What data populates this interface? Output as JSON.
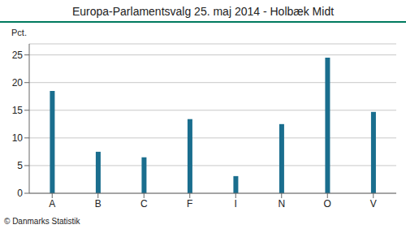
{
  "chart_data": {
    "type": "bar",
    "title": "Europa-Parlamentsvalg 25. maj 2014 - Holbæk Midt",
    "ylabel": "Pct.",
    "annotations": [
      "© Danmarks Statistik"
    ],
    "categories": [
      "A",
      "B",
      "C",
      "F",
      "I",
      "N",
      "O",
      "V"
    ],
    "values": [
      18.5,
      7.5,
      6.5,
      13.4,
      3.1,
      12.5,
      24.5,
      14.7
    ],
    "color": "#1a6e8e",
    "ylim": [
      0,
      27
    ],
    "yticks": [
      0,
      5,
      10,
      15,
      20,
      25
    ],
    "grid": true
  }
}
